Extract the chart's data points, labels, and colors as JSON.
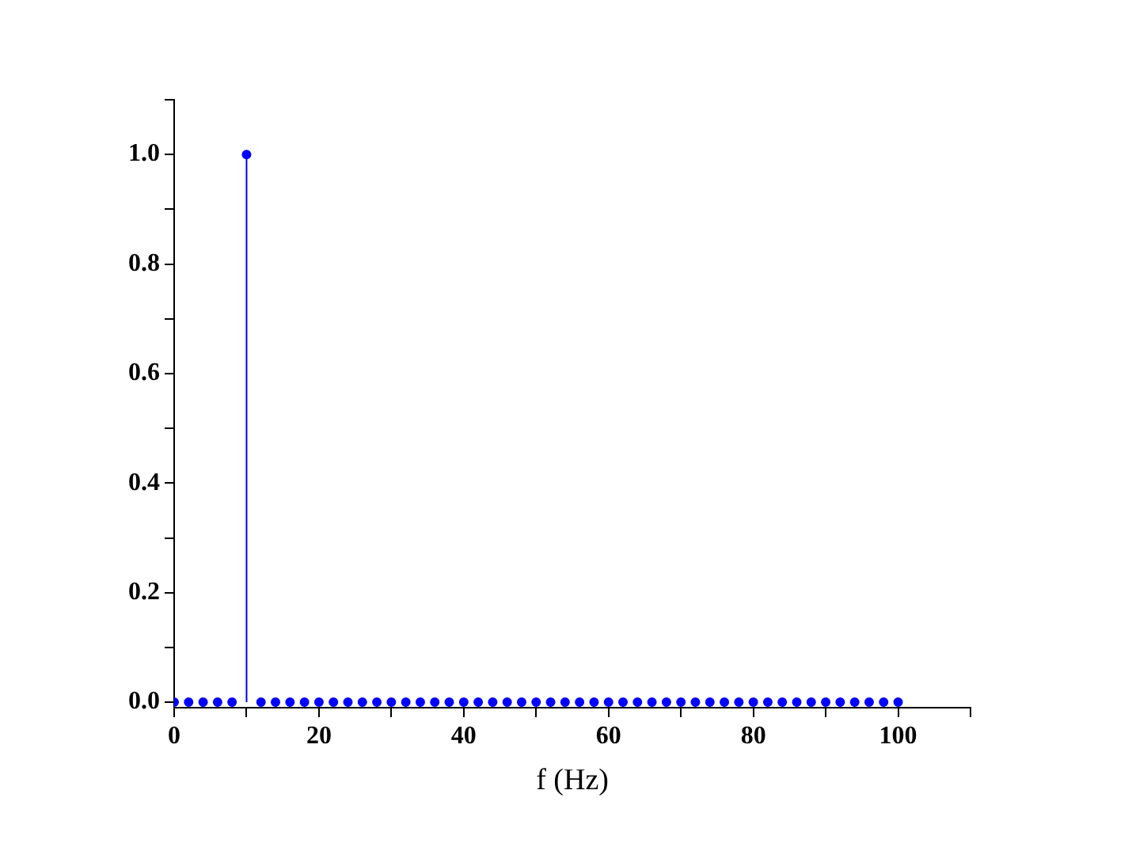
{
  "chart_data": {
    "type": "lollipop",
    "xlabel": "f (Hz)",
    "color": "#0000ff",
    "marker": "circle",
    "grid": false,
    "legend": false,
    "x": [
      0,
      2,
      4,
      6,
      8,
      10,
      12,
      14,
      16,
      18,
      20,
      22,
      24,
      26,
      28,
      30,
      32,
      34,
      36,
      38,
      40,
      42,
      44,
      46,
      48,
      50,
      52,
      54,
      56,
      58,
      60,
      62,
      64,
      66,
      68,
      70,
      72,
      74,
      76,
      78,
      80,
      82,
      84,
      86,
      88,
      90,
      92,
      94,
      96,
      98,
      100
    ],
    "values": [
      0,
      0,
      0,
      0,
      0,
      1,
      0,
      0,
      0,
      0,
      0,
      0,
      0,
      0,
      0,
      0,
      0,
      0,
      0,
      0,
      0,
      0,
      0,
      0,
      0,
      0,
      0,
      0,
      0,
      0,
      0,
      0,
      0,
      0,
      0,
      0,
      0,
      0,
      0,
      0,
      0,
      0,
      0,
      0,
      0,
      0,
      0,
      0,
      0,
      0,
      0
    ],
    "xlim": [
      0,
      110
    ],
    "xticks": [
      0,
      {
        "value": 10,
        "label": null
      },
      20,
      {
        "value": 30,
        "label": null
      },
      40,
      {
        "value": 50,
        "label": null
      },
      60,
      {
        "value": 70,
        "label": null
      },
      80,
      {
        "value": 90,
        "label": null
      },
      100,
      {
        "value": 110,
        "label": null
      }
    ],
    "ylim": [
      -0.01,
      1.1
    ],
    "yticks": [
      {
        "value": 0,
        "label": "0.0"
      },
      {
        "value": 0.1,
        "label": null
      },
      {
        "value": 0.2,
        "label": "0.2"
      },
      {
        "value": 0.3,
        "label": null
      },
      {
        "value": 0.4,
        "label": "0.4"
      },
      {
        "value": 0.5,
        "label": null
      },
      {
        "value": 0.6,
        "label": "0.6"
      },
      {
        "value": 0.7,
        "label": null
      },
      {
        "value": 0.8,
        "label": "0.8"
      },
      {
        "value": 0.9,
        "label": null
      },
      {
        "value": 1,
        "label": "1.0"
      },
      {
        "value": 1.1,
        "label": null
      }
    ]
  }
}
